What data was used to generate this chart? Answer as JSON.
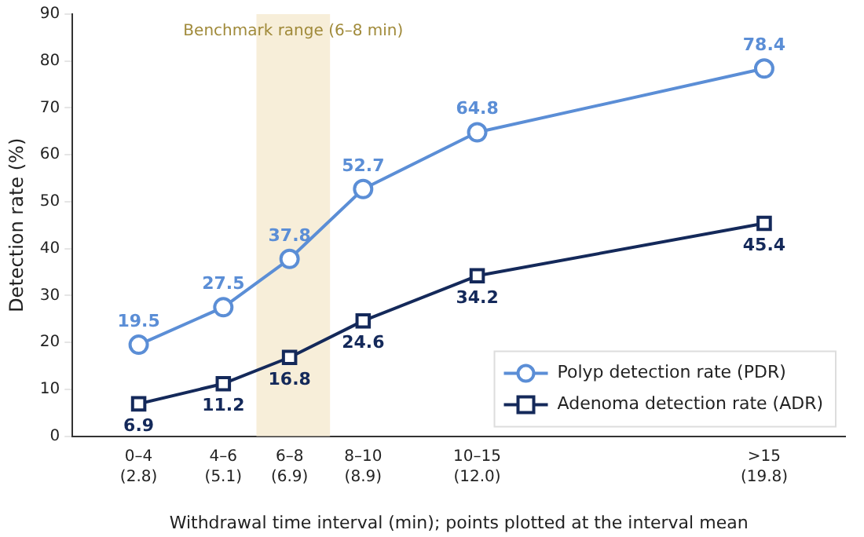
{
  "chart_data": {
    "type": "line",
    "xlabel": "Withdrawal time interval (min); points plotted at the interval mean",
    "ylabel": "Detection rate (%)",
    "x": [
      2.8,
      5.1,
      6.9,
      8.9,
      12.0,
      19.8
    ],
    "xlim": [
      1,
      22
    ],
    "xticks": [
      {
        "value": 2.8,
        "label": "(2.8)"
      },
      {
        "value": 5.1,
        "label": "(5.1)"
      },
      {
        "value": 6.9,
        "label": "(6.9)"
      },
      {
        "value": 8.9,
        "label": "(8.9)"
      },
      {
        "value": 12.0,
        "label": "(12.0)"
      },
      {
        "value": 19.8,
        "label": "(19.8)"
      }
    ],
    "annotations": [
      "0–4",
      "4–6",
      "6–8",
      "8–10",
      "10–15",
      ">15"
    ],
    "ylim": [
      0,
      90
    ],
    "yticks": [
      0,
      10,
      20,
      30,
      40,
      50,
      60,
      70,
      80,
      90
    ],
    "series": [
      {
        "name": "Polyp detection rate (PDR)",
        "color": "#5b8ed6",
        "marker": "circle",
        "values": [
          19.5,
          27.5,
          37.8,
          52.7,
          64.8,
          78.4
        ]
      },
      {
        "name": "Adenoma detection rate (ADR)",
        "color": "#14295a",
        "marker": "square",
        "values": [
          6.9,
          11.2,
          16.8,
          24.6,
          34.2,
          45.4
        ]
      }
    ],
    "bands": [
      {
        "axis": "x",
        "from": 6,
        "to": 8,
        "label": "Benchmark range (6–8 min)",
        "color": "#f7eed9"
      }
    ],
    "data_labels": true,
    "grid": false,
    "legend": "bottom right",
    "line_style": "solid"
  }
}
